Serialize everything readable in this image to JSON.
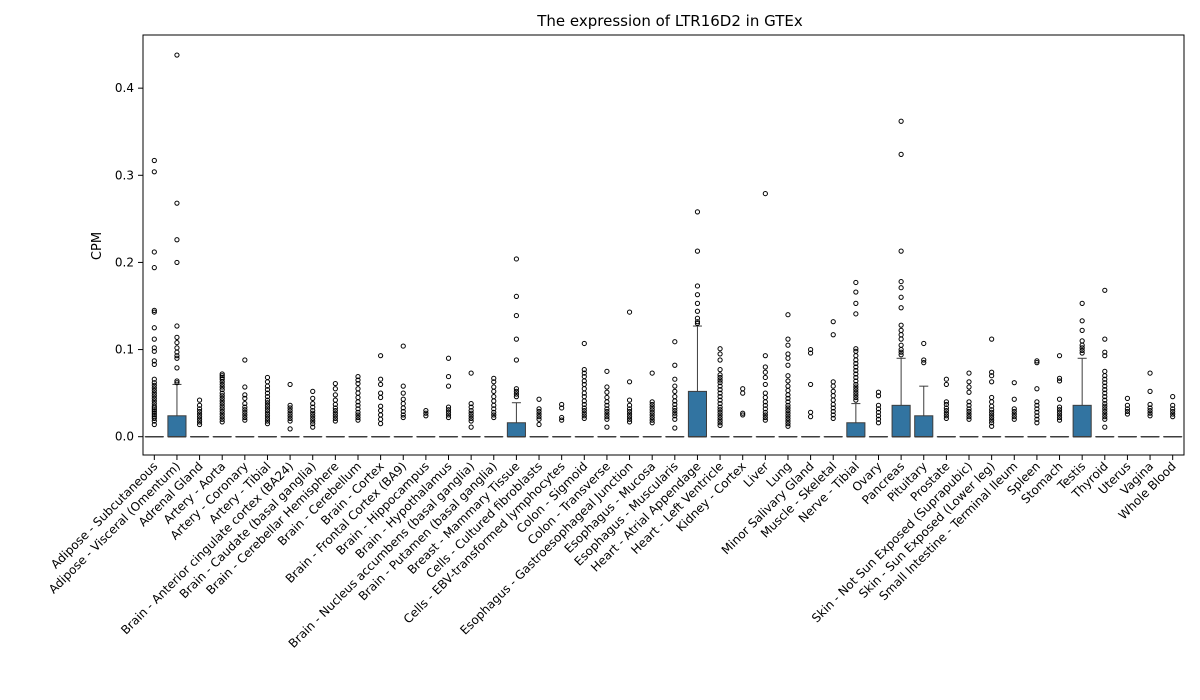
{
  "chart_data": {
    "type": "box",
    "title": "The expression of LTR16D2 in GTEx",
    "xlabel": "",
    "ylabel": "CPM",
    "ylim": [
      -0.021,
      0.461
    ],
    "yticks": [
      0.0,
      0.1,
      0.2,
      0.3,
      0.4
    ],
    "ytick_labels": [
      "0.0",
      "0.1",
      "0.2",
      "0.3",
      "0.4"
    ],
    "box_color": "#3274a1",
    "grid": false,
    "categories": [
      "Adipose - Subcutaneous",
      "Adipose - Visceral (Omentum)",
      "Adrenal Gland",
      "Artery - Aorta",
      "Artery - Coronary",
      "Artery - Tibial",
      "Brain - Anterior cingulate cortex (BA24)",
      "Brain - Caudate (basal ganglia)",
      "Brain - Cerebellar Hemisphere",
      "Brain - Cerebellum",
      "Brain - Cortex",
      "Brain - Frontal Cortex (BA9)",
      "Brain - Hippocampus",
      "Brain - Hypothalamus",
      "Brain - Nucleus accumbens (basal ganglia)",
      "Brain - Putamen (basal ganglia)",
      "Breast - Mammary Tissue",
      "Cells - Cultured fibroblasts",
      "Cells - EBV-transformed lymphocytes",
      "Colon - Sigmoid",
      "Colon - Transverse",
      "Esophagus - Gastroesophageal Junction",
      "Esophagus - Mucosa",
      "Esophagus - Muscularis",
      "Heart - Atrial Appendage",
      "Heart - Left Ventricle",
      "Kidney - Cortex",
      "Liver",
      "Lung",
      "Minor Salivary Gland",
      "Muscle - Skeletal",
      "Nerve - Tibial",
      "Ovary",
      "Pancreas",
      "Pituitary",
      "Prostate",
      "Skin - Not Sun Exposed (Suprapubic)",
      "Skin - Sun Exposed (Lower leg)",
      "Small Intestine - Terminal Ileum",
      "Spleen",
      "Stomach",
      "Testis",
      "Thyroid",
      "Uterus",
      "Vagina",
      "Whole Blood"
    ],
    "boxes": [
      {
        "q1": 0,
        "median": 0,
        "q3": 0,
        "whisker_low": 0,
        "whisker_high": 0,
        "outliers": [
          0.317,
          0.304,
          0.212,
          0.194,
          0.145,
          0.143,
          0.125,
          0.112,
          0.102,
          0.098,
          0.087,
          0.083,
          0.066,
          0.062,
          0.059,
          0.056,
          0.053,
          0.05,
          0.047,
          0.044,
          0.041,
          0.038,
          0.035,
          0.033,
          0.031,
          0.029,
          0.027,
          0.025,
          0.023,
          0.021,
          0.018,
          0.014
        ]
      },
      {
        "q1": 0,
        "median": 0,
        "q3": 0.024,
        "whisker_low": 0,
        "whisker_high": 0.06,
        "outliers": [
          0.438,
          0.268,
          0.226,
          0.2,
          0.127,
          0.114,
          0.108,
          0.102,
          0.097,
          0.093,
          0.09,
          0.079,
          0.064,
          0.062
        ]
      },
      {
        "q1": 0,
        "median": 0,
        "q3": 0,
        "whisker_low": 0,
        "whisker_high": 0,
        "outliers": [
          0.042,
          0.036,
          0.032,
          0.029,
          0.026,
          0.023,
          0.02,
          0.017,
          0.014
        ]
      },
      {
        "q1": 0,
        "median": 0,
        "q3": 0,
        "whisker_low": 0,
        "whisker_high": 0,
        "outliers": [
          0.072,
          0.07,
          0.068,
          0.066,
          0.063,
          0.06,
          0.057,
          0.054,
          0.05,
          0.047,
          0.044,
          0.041,
          0.038,
          0.035,
          0.032,
          0.029,
          0.026,
          0.023,
          0.02,
          0.017
        ]
      },
      {
        "q1": 0,
        "median": 0,
        "q3": 0,
        "whisker_low": 0,
        "whisker_high": 0,
        "outliers": [
          0.088,
          0.057,
          0.048,
          0.044,
          0.038,
          0.034,
          0.031,
          0.028,
          0.025,
          0.022,
          0.019
        ]
      },
      {
        "q1": 0,
        "median": 0,
        "q3": 0,
        "whisker_low": 0,
        "whisker_high": 0,
        "outliers": [
          0.068,
          0.063,
          0.058,
          0.054,
          0.05,
          0.046,
          0.042,
          0.039,
          0.036,
          0.033,
          0.03,
          0.027,
          0.024,
          0.021,
          0.018,
          0.015
        ]
      },
      {
        "q1": 0,
        "median": 0,
        "q3": 0,
        "whisker_low": 0,
        "whisker_high": 0,
        "outliers": [
          0.06,
          0.036,
          0.033,
          0.03,
          0.027,
          0.024,
          0.021,
          0.018,
          0.009
        ]
      },
      {
        "q1": 0,
        "median": 0,
        "q3": 0,
        "whisker_low": 0,
        "whisker_high": 0,
        "outliers": [
          0.052,
          0.044,
          0.038,
          0.034,
          0.03,
          0.027,
          0.024,
          0.021,
          0.018,
          0.015,
          0.011
        ]
      },
      {
        "q1": 0,
        "median": 0,
        "q3": 0,
        "whisker_low": 0,
        "whisker_high": 0,
        "outliers": [
          0.061,
          0.055,
          0.048,
          0.042,
          0.037,
          0.033,
          0.03,
          0.027,
          0.024,
          0.021,
          0.018
        ]
      },
      {
        "q1": 0,
        "median": 0,
        "q3": 0,
        "whisker_low": 0,
        "whisker_high": 0,
        "outliers": [
          0.069,
          0.065,
          0.061,
          0.055,
          0.05,
          0.045,
          0.04,
          0.036,
          0.032,
          0.028,
          0.025,
          0.022,
          0.019
        ]
      },
      {
        "q1": 0,
        "median": 0,
        "q3": 0,
        "whisker_low": 0,
        "whisker_high": 0,
        "outliers": [
          0.093,
          0.066,
          0.06,
          0.05,
          0.045,
          0.035,
          0.03,
          0.025,
          0.02,
          0.015
        ]
      },
      {
        "q1": 0,
        "median": 0,
        "q3": 0,
        "whisker_low": 0,
        "whisker_high": 0,
        "outliers": [
          0.104,
          0.058,
          0.05,
          0.043,
          0.038,
          0.033,
          0.029,
          0.025,
          0.022
        ]
      },
      {
        "q1": 0,
        "median": 0,
        "q3": 0,
        "whisker_low": 0,
        "whisker_high": 0,
        "outliers": [
          0.03,
          0.027,
          0.024
        ]
      },
      {
        "q1": 0,
        "median": 0,
        "q3": 0,
        "whisker_low": 0,
        "whisker_high": 0,
        "outliers": [
          0.09,
          0.069,
          0.058,
          0.034,
          0.031,
          0.028,
          0.025,
          0.022
        ]
      },
      {
        "q1": 0,
        "median": 0,
        "q3": 0,
        "whisker_low": 0,
        "whisker_high": 0,
        "outliers": [
          0.073,
          0.038,
          0.034,
          0.03,
          0.027,
          0.024,
          0.021,
          0.018,
          0.011
        ]
      },
      {
        "q1": 0,
        "median": 0,
        "q3": 0,
        "whisker_low": 0,
        "whisker_high": 0,
        "outliers": [
          0.067,
          0.063,
          0.057,
          0.052,
          0.046,
          0.041,
          0.036,
          0.032,
          0.028,
          0.025,
          0.022
        ]
      },
      {
        "q1": 0,
        "median": 0,
        "q3": 0.016,
        "whisker_low": 0,
        "whisker_high": 0.039,
        "outliers": [
          0.204,
          0.161,
          0.139,
          0.112,
          0.088,
          0.055,
          0.052,
          0.049,
          0.046
        ]
      },
      {
        "q1": 0,
        "median": 0,
        "q3": 0,
        "whisker_low": 0,
        "whisker_high": 0,
        "outliers": [
          0.043,
          0.032,
          0.029,
          0.026,
          0.023,
          0.02,
          0.014
        ]
      },
      {
        "q1": 0,
        "median": 0,
        "q3": 0,
        "whisker_low": 0,
        "whisker_high": 0,
        "outliers": [
          0.037,
          0.033,
          0.022,
          0.019
        ]
      },
      {
        "q1": 0,
        "median": 0,
        "q3": 0,
        "whisker_low": 0,
        "whisker_high": 0,
        "outliers": [
          0.107,
          0.077,
          0.073,
          0.069,
          0.064,
          0.06,
          0.055,
          0.05,
          0.046,
          0.041,
          0.037,
          0.033,
          0.03,
          0.027,
          0.024,
          0.021
        ]
      },
      {
        "q1": 0,
        "median": 0,
        "q3": 0,
        "whisker_low": 0,
        "whisker_high": 0,
        "outliers": [
          0.075,
          0.057,
          0.051,
          0.045,
          0.04,
          0.036,
          0.032,
          0.029,
          0.026,
          0.023,
          0.02,
          0.011
        ]
      },
      {
        "q1": 0,
        "median": 0,
        "q3": 0,
        "whisker_low": 0,
        "whisker_high": 0,
        "outliers": [
          0.143,
          0.063,
          0.042,
          0.036,
          0.032,
          0.029,
          0.026,
          0.023,
          0.02,
          0.017
        ]
      },
      {
        "q1": 0,
        "median": 0,
        "q3": 0,
        "whisker_low": 0,
        "whisker_high": 0,
        "outliers": [
          0.073,
          0.04,
          0.037,
          0.034,
          0.031,
          0.028,
          0.025,
          0.022,
          0.019,
          0.016
        ]
      },
      {
        "q1": 0,
        "median": 0,
        "q3": 0,
        "whisker_low": 0,
        "whisker_high": 0,
        "outliers": [
          0.109,
          0.082,
          0.066,
          0.058,
          0.052,
          0.046,
          0.041,
          0.037,
          0.033,
          0.03,
          0.027,
          0.024,
          0.02,
          0.01
        ]
      },
      {
        "q1": 0,
        "median": 0,
        "q3": 0.052,
        "whisker_low": 0,
        "whisker_high": 0.127,
        "outliers": [
          0.258,
          0.213,
          0.173,
          0.163,
          0.153,
          0.144,
          0.136,
          0.132,
          0.13
        ]
      },
      {
        "q1": 0,
        "median": 0,
        "q3": 0,
        "whisker_low": 0,
        "whisker_high": 0,
        "outliers": [
          0.101,
          0.095,
          0.088,
          0.077,
          0.071,
          0.068,
          0.065,
          0.062,
          0.058,
          0.054,
          0.05,
          0.046,
          0.042,
          0.038,
          0.034,
          0.031,
          0.028,
          0.025,
          0.022,
          0.019,
          0.016,
          0.013
        ]
      },
      {
        "q1": 0,
        "median": 0,
        "q3": 0,
        "whisker_low": 0,
        "whisker_high": 0,
        "outliers": [
          0.055,
          0.05,
          0.027,
          0.025
        ]
      },
      {
        "q1": 0,
        "median": 0,
        "q3": 0,
        "whisker_low": 0,
        "whisker_high": 0,
        "outliers": [
          0.279,
          0.093,
          0.08,
          0.074,
          0.068,
          0.06,
          0.05,
          0.045,
          0.04,
          0.036,
          0.032,
          0.028,
          0.025,
          0.022,
          0.019
        ]
      },
      {
        "q1": 0,
        "median": 0,
        "q3": 0,
        "whisker_low": 0,
        "whisker_high": 0,
        "outliers": [
          0.14,
          0.112,
          0.105,
          0.095,
          0.09,
          0.082,
          0.07,
          0.064,
          0.058,
          0.053,
          0.048,
          0.044,
          0.04,
          0.036,
          0.033,
          0.03,
          0.027,
          0.024,
          0.021,
          0.018,
          0.015,
          0.012
        ]
      },
      {
        "q1": 0,
        "median": 0,
        "q3": 0,
        "whisker_low": 0,
        "whisker_high": 0,
        "outliers": [
          0.1,
          0.096,
          0.06,
          0.028,
          0.023
        ]
      },
      {
        "q1": 0,
        "median": 0,
        "q3": 0,
        "whisker_low": 0,
        "whisker_high": 0,
        "outliers": [
          0.132,
          0.117,
          0.063,
          0.058,
          0.052,
          0.047,
          0.042,
          0.037,
          0.033,
          0.029,
          0.025,
          0.021
        ]
      },
      {
        "q1": 0,
        "median": 0,
        "q3": 0.016,
        "whisker_low": 0,
        "whisker_high": 0.038,
        "outliers": [
          0.177,
          0.166,
          0.153,
          0.141,
          0.101,
          0.098,
          0.093,
          0.088,
          0.084,
          0.08,
          0.076,
          0.072,
          0.068,
          0.064,
          0.06,
          0.057,
          0.054,
          0.051,
          0.048,
          0.045,
          0.042
        ]
      },
      {
        "q1": 0,
        "median": 0,
        "q3": 0,
        "whisker_low": 0,
        "whisker_high": 0,
        "outliers": [
          0.051,
          0.047,
          0.036,
          0.032,
          0.028,
          0.024,
          0.02,
          0.016
        ]
      },
      {
        "q1": 0,
        "median": 0,
        "q3": 0.036,
        "whisker_low": 0,
        "whisker_high": 0.09,
        "outliers": [
          0.362,
          0.324,
          0.213,
          0.178,
          0.171,
          0.16,
          0.148,
          0.128,
          0.122,
          0.117,
          0.112,
          0.105,
          0.1,
          0.097,
          0.094
        ]
      },
      {
        "q1": 0,
        "median": 0,
        "q3": 0.024,
        "whisker_low": 0,
        "whisker_high": 0.058,
        "outliers": [
          0.107,
          0.088,
          0.085
        ]
      },
      {
        "q1": 0,
        "median": 0,
        "q3": 0,
        "whisker_low": 0,
        "whisker_high": 0,
        "outliers": [
          0.066,
          0.06,
          0.04,
          0.037,
          0.033,
          0.03,
          0.027,
          0.024,
          0.021
        ]
      },
      {
        "q1": 0,
        "median": 0,
        "q3": 0,
        "whisker_low": 0,
        "whisker_high": 0,
        "outliers": [
          0.073,
          0.063,
          0.057,
          0.051,
          0.04,
          0.036,
          0.032,
          0.029,
          0.026,
          0.023,
          0.02
        ]
      },
      {
        "q1": 0,
        "median": 0,
        "q3": 0,
        "whisker_low": 0,
        "whisker_high": 0,
        "outliers": [
          0.112,
          0.074,
          0.07,
          0.063,
          0.045,
          0.04,
          0.035,
          0.031,
          0.028,
          0.025,
          0.022,
          0.019,
          0.016,
          0.012
        ]
      },
      {
        "q1": 0,
        "median": 0,
        "q3": 0,
        "whisker_low": 0,
        "whisker_high": 0,
        "outliers": [
          0.062,
          0.043,
          0.032,
          0.029,
          0.026,
          0.023,
          0.02
        ]
      },
      {
        "q1": 0,
        "median": 0,
        "q3": 0,
        "whisker_low": 0,
        "whisker_high": 0,
        "outliers": [
          0.087,
          0.085,
          0.055,
          0.04,
          0.036,
          0.032,
          0.028,
          0.024,
          0.02,
          0.016
        ]
      },
      {
        "q1": 0,
        "median": 0,
        "q3": 0,
        "whisker_low": 0,
        "whisker_high": 0,
        "outliers": [
          0.093,
          0.067,
          0.064,
          0.043,
          0.034,
          0.031,
          0.028,
          0.025,
          0.022,
          0.019
        ]
      },
      {
        "q1": 0,
        "median": 0,
        "q3": 0.036,
        "whisker_low": 0,
        "whisker_high": 0.09,
        "outliers": [
          0.153,
          0.133,
          0.122,
          0.11,
          0.105,
          0.102,
          0.099,
          0.096
        ]
      },
      {
        "q1": 0,
        "median": 0,
        "q3": 0,
        "whisker_low": 0,
        "whisker_high": 0,
        "outliers": [
          0.168,
          0.112,
          0.097,
          0.093,
          0.075,
          0.07,
          0.066,
          0.062,
          0.058,
          0.054,
          0.05,
          0.046,
          0.042,
          0.038,
          0.035,
          0.032,
          0.029,
          0.026,
          0.023,
          0.02,
          0.011
        ]
      },
      {
        "q1": 0,
        "median": 0,
        "q3": 0,
        "whisker_low": 0,
        "whisker_high": 0,
        "outliers": [
          0.044,
          0.036,
          0.032,
          0.029,
          0.026
        ]
      },
      {
        "q1": 0,
        "median": 0,
        "q3": 0,
        "whisker_low": 0,
        "whisker_high": 0,
        "outliers": [
          0.073,
          0.052,
          0.037,
          0.033,
          0.03,
          0.027,
          0.024
        ]
      },
      {
        "q1": 0,
        "median": 0,
        "q3": 0,
        "whisker_low": 0,
        "whisker_high": 0,
        "outliers": [
          0.046,
          0.036,
          0.032,
          0.029,
          0.026,
          0.023
        ]
      }
    ]
  }
}
